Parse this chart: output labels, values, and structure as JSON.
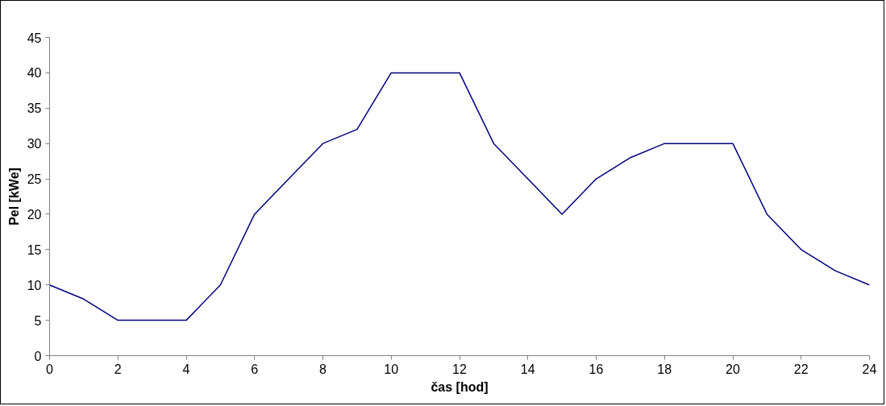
{
  "chart_data": {
    "type": "line",
    "xlabel": "čas [hod]",
    "ylabel": "Pel [kWe]",
    "x": [
      0,
      1,
      2,
      3,
      4,
      5,
      6,
      7,
      8,
      9,
      10,
      11,
      12,
      13,
      14,
      15,
      16,
      17,
      18,
      19,
      20,
      21,
      22,
      23,
      24
    ],
    "series": [
      {
        "color": "#000080",
        "values": [
          10,
          8,
          5,
          5,
          5,
          10,
          20,
          25,
          30,
          32,
          40,
          40,
          40,
          30,
          25,
          20,
          25,
          28,
          30,
          30,
          30,
          20,
          15,
          12,
          10
        ]
      }
    ],
    "xlim": [
      0,
      24
    ],
    "xticks": [
      0,
      2,
      4,
      6,
      8,
      10,
      12,
      14,
      16,
      18,
      20,
      22,
      24
    ],
    "ylim": [
      0,
      45
    ],
    "yticks": [
      0,
      5,
      10,
      15,
      20,
      25,
      30,
      35,
      40,
      45
    ],
    "grid": false,
    "marker": "none",
    "line_style": "solid"
  }
}
